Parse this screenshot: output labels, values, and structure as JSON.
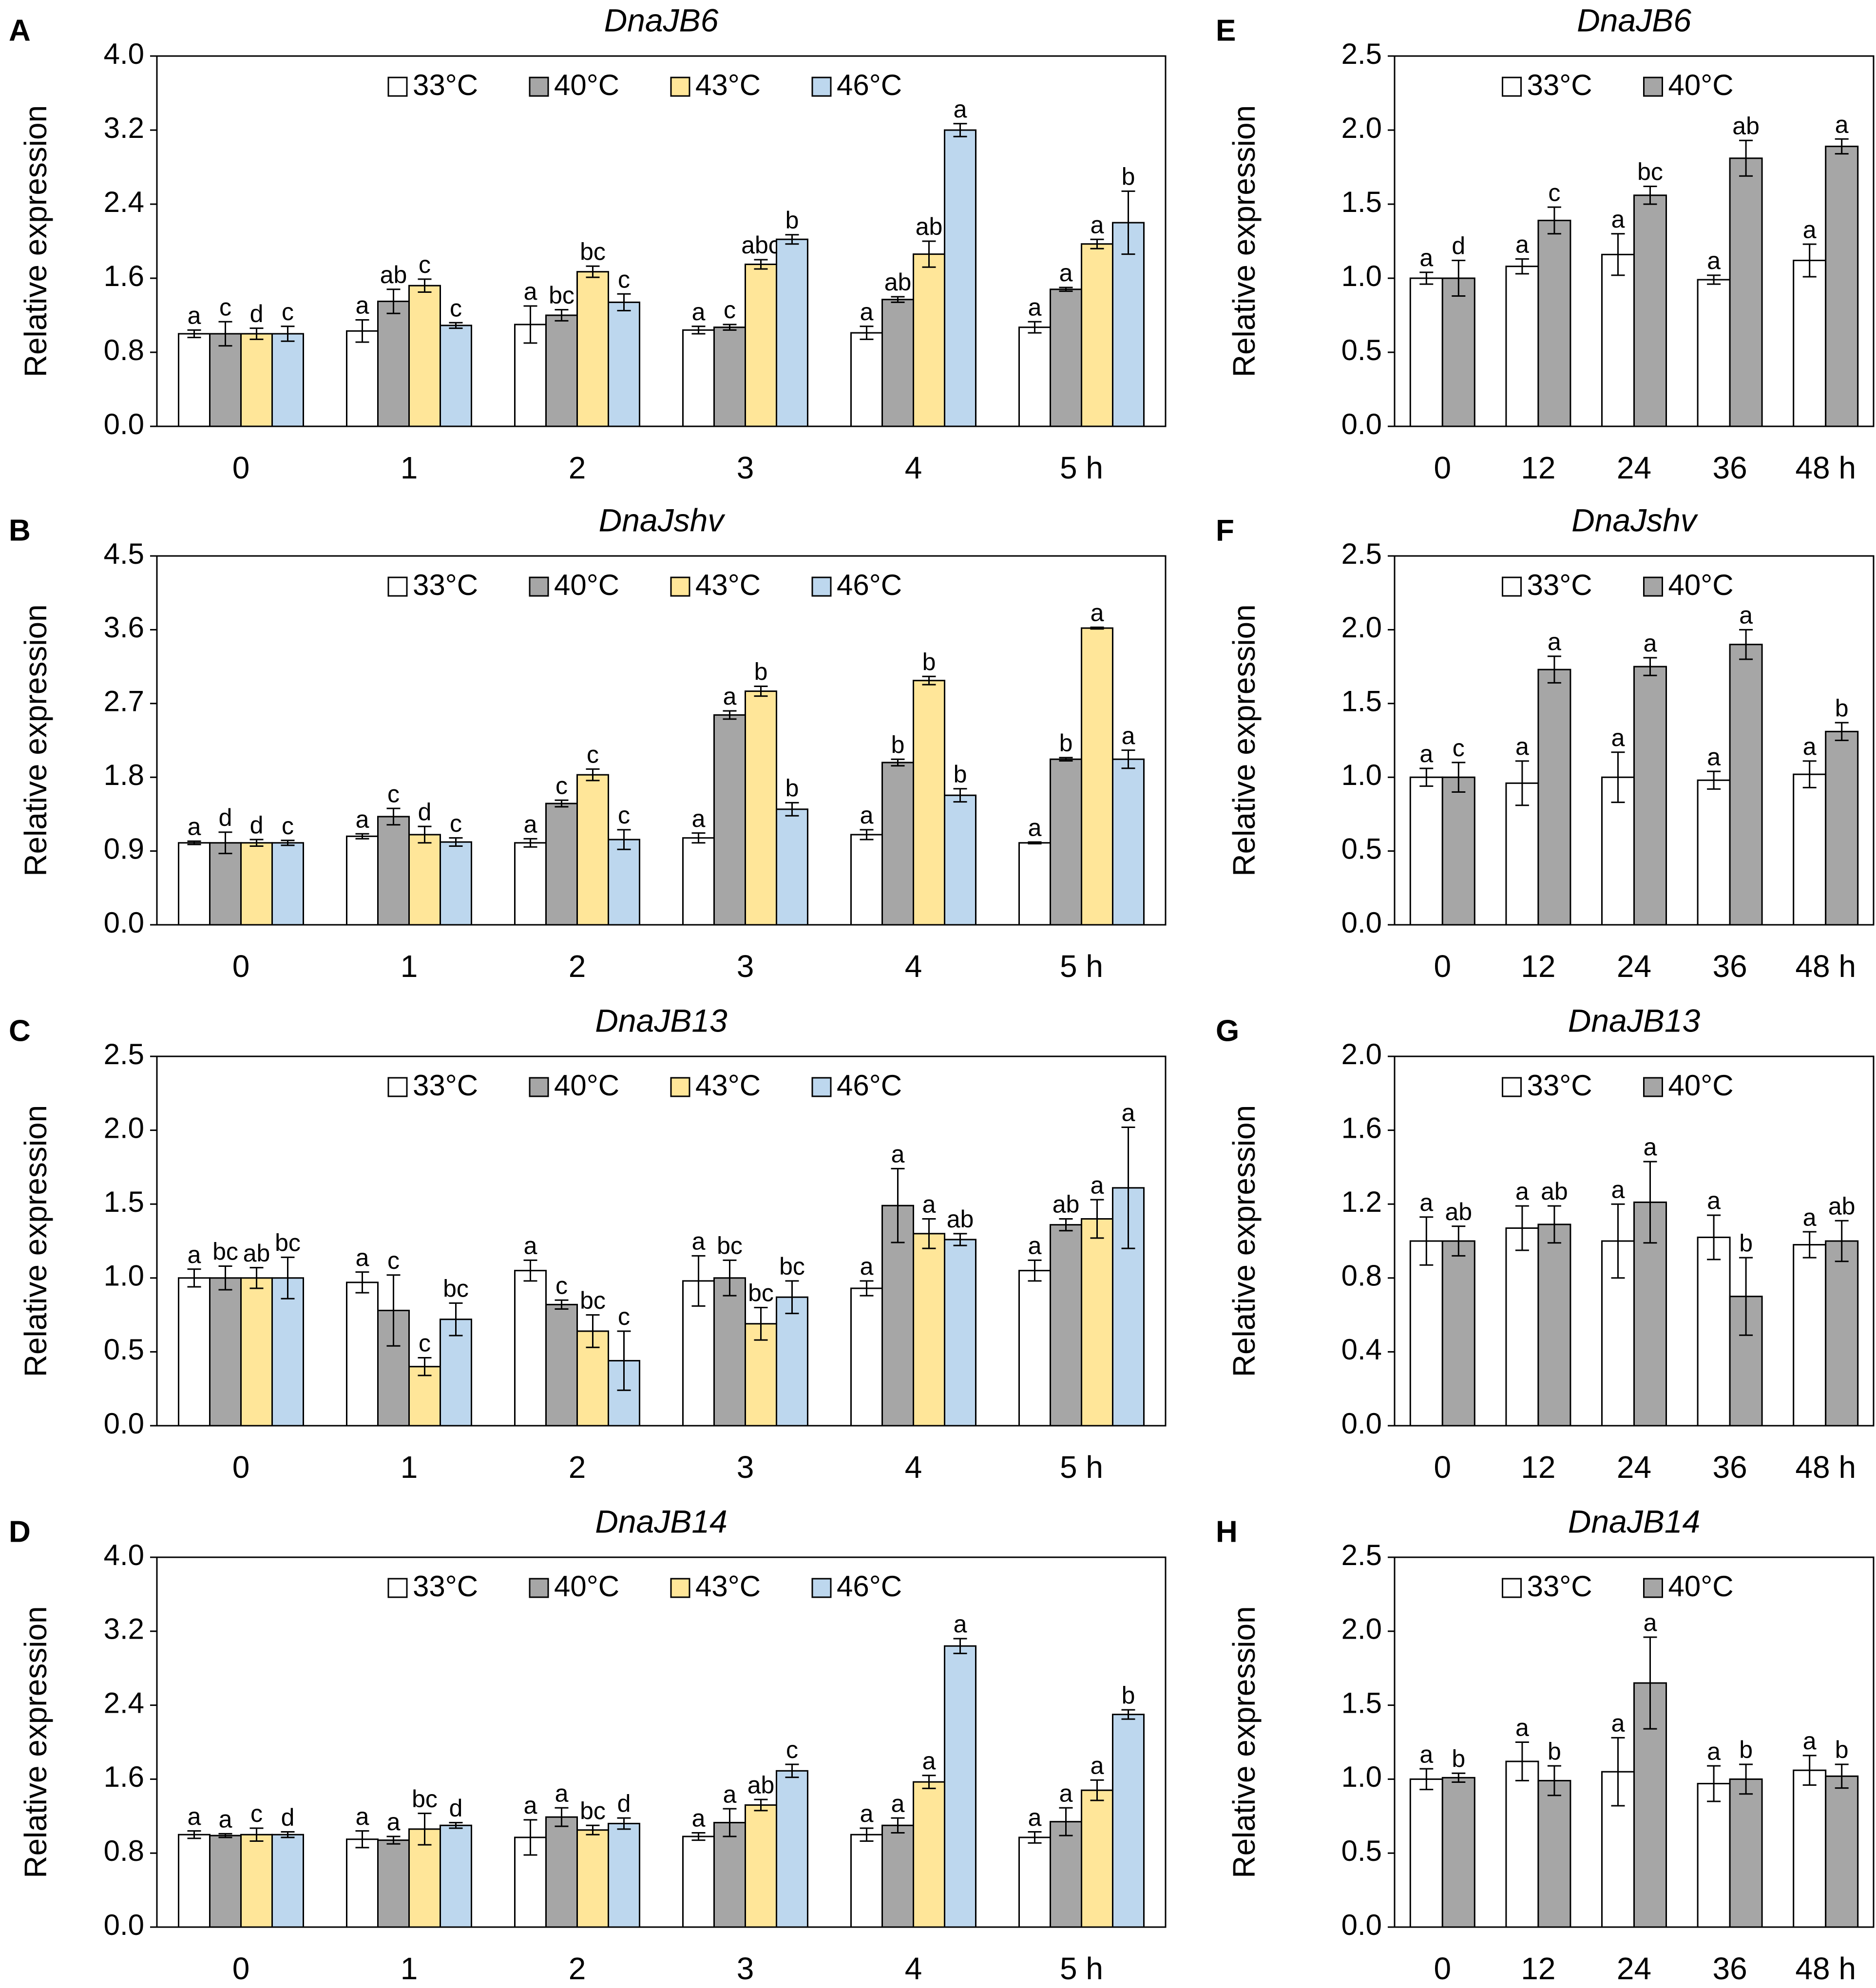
{
  "colors": {
    "33°C": "#ffffff",
    "40°C": "#a6a6a6",
    "43°C": "#ffe699",
    "46°C": "#bdd7ee",
    "stroke": "#000000"
  },
  "ylabel": "Relative expression",
  "chart_data": [
    {
      "panel": "A",
      "title": "DnaJB6",
      "type": "bar",
      "ylabel": "Relative expression",
      "ylim": [
        0,
        4.0
      ],
      "yticks": [
        "0.0",
        "0.8",
        "1.6",
        "2.4",
        "3.2",
        "4.0"
      ],
      "categories": [
        "0",
        "1",
        "2",
        "3",
        "4",
        "5 h"
      ],
      "series": [
        {
          "name": "33°C",
          "values": [
            1.0,
            1.03,
            1.1,
            1.04,
            1.01,
            1.07
          ],
          "errors": [
            0.04,
            0.12,
            0.2,
            0.04,
            0.07,
            0.06
          ],
          "letters": [
            "a",
            "a",
            "a",
            "a",
            "a",
            "a"
          ]
        },
        {
          "name": "40°C",
          "values": [
            1.0,
            1.35,
            1.2,
            1.07,
            1.37,
            1.48
          ],
          "errors": [
            0.13,
            0.13,
            0.06,
            0.03,
            0.03,
            0.02
          ],
          "letters": [
            "c",
            "ab",
            "bc",
            "c",
            "ab",
            "a"
          ]
        },
        {
          "name": "43°C",
          "values": [
            1.0,
            1.52,
            1.67,
            1.75,
            1.86,
            1.97
          ],
          "errors": [
            0.06,
            0.07,
            0.06,
            0.05,
            0.14,
            0.05
          ],
          "letters": [
            "d",
            "c",
            "bc",
            "abc",
            "ab",
            "a"
          ]
        },
        {
          "name": "46°C",
          "values": [
            1.0,
            1.09,
            1.34,
            2.02,
            3.2,
            2.2
          ],
          "errors": [
            0.08,
            0.03,
            0.09,
            0.05,
            0.07,
            0.34
          ],
          "letters": [
            "c",
            "c",
            "c",
            "b",
            "a",
            "b"
          ]
        }
      ]
    },
    {
      "panel": "B",
      "title": "DnaJshv",
      "type": "bar",
      "ylabel": "Relative expression",
      "ylim": [
        0,
        4.5
      ],
      "yticks": [
        "0.0",
        "0.9",
        "1.8",
        "2.7",
        "3.6",
        "4.5"
      ],
      "categories": [
        "0",
        "1",
        "2",
        "3",
        "4",
        "5 h"
      ],
      "series": [
        {
          "name": "33°C",
          "values": [
            1.0,
            1.08,
            1.0,
            1.06,
            1.1,
            1.0
          ],
          "errors": [
            0.02,
            0.03,
            0.05,
            0.06,
            0.06,
            0.01
          ],
          "letters": [
            "a",
            "a",
            "a",
            "a",
            "a",
            "a"
          ]
        },
        {
          "name": "40°C",
          "values": [
            1.0,
            1.32,
            1.48,
            2.56,
            1.98,
            2.02
          ],
          "errors": [
            0.13,
            0.1,
            0.04,
            0.05,
            0.04,
            0.02
          ],
          "letters": [
            "d",
            "c",
            "c",
            "a",
            "b",
            "b"
          ]
        },
        {
          "name": "43°C",
          "values": [
            1.0,
            1.1,
            1.83,
            2.85,
            2.98,
            3.62
          ],
          "errors": [
            0.04,
            0.1,
            0.07,
            0.06,
            0.05,
            0.01
          ],
          "letters": [
            "d",
            "d",
            "c",
            "b",
            "b",
            "a"
          ]
        },
        {
          "name": "46°C",
          "values": [
            1.0,
            1.01,
            1.04,
            1.41,
            1.58,
            2.02
          ],
          "errors": [
            0.03,
            0.05,
            0.12,
            0.08,
            0.08,
            0.11
          ],
          "letters": [
            "c",
            "c",
            "c",
            "b",
            "b",
            "a"
          ]
        }
      ]
    },
    {
      "panel": "C",
      "title": "DnaJB13",
      "type": "bar",
      "ylabel": "Relative expression",
      "ylim": [
        0,
        2.5
      ],
      "yticks": [
        "0.0",
        "0.5",
        "1.0",
        "1.5",
        "2.0",
        "2.5"
      ],
      "categories": [
        "0",
        "1",
        "2",
        "3",
        "4",
        "5 h"
      ],
      "series": [
        {
          "name": "33°C",
          "values": [
            1.0,
            0.97,
            1.05,
            0.98,
            0.93,
            1.05
          ],
          "errors": [
            0.06,
            0.07,
            0.07,
            0.17,
            0.05,
            0.07
          ],
          "letters": [
            "a",
            "a",
            "a",
            "a",
            "a",
            "a"
          ]
        },
        {
          "name": "40°C",
          "values": [
            1.0,
            0.78,
            0.82,
            1.0,
            1.49,
            1.36
          ],
          "errors": [
            0.08,
            0.24,
            0.03,
            0.12,
            0.25,
            0.04
          ],
          "letters": [
            "bc",
            "c",
            "c",
            "bc",
            "a",
            "ab"
          ]
        },
        {
          "name": "43°C",
          "values": [
            1.0,
            0.4,
            0.64,
            0.69,
            1.3,
            1.4
          ],
          "errors": [
            0.07,
            0.06,
            0.11,
            0.11,
            0.1,
            0.13
          ],
          "letters": [
            "ab",
            "c",
            "bc",
            "bc",
            "a",
            "a"
          ]
        },
        {
          "name": "46°C",
          "values": [
            1.0,
            0.72,
            0.44,
            0.87,
            1.26,
            1.61
          ],
          "errors": [
            0.14,
            0.11,
            0.2,
            0.11,
            0.04,
            0.41
          ],
          "letters": [
            "bc",
            "bc",
            "c",
            "bc",
            "ab",
            "a"
          ]
        }
      ]
    },
    {
      "panel": "D",
      "title": "DnaJB14",
      "type": "bar",
      "ylabel": "Relative expression",
      "ylim": [
        0,
        4.0
      ],
      "yticks": [
        "0.0",
        "0.8",
        "1.6",
        "2.4",
        "3.2",
        "4.0"
      ],
      "categories": [
        "0",
        "1",
        "2",
        "3",
        "4",
        "5 h"
      ],
      "series": [
        {
          "name": "33°C",
          "values": [
            1.0,
            0.95,
            0.97,
            0.98,
            1.0,
            0.97
          ],
          "errors": [
            0.04,
            0.09,
            0.19,
            0.04,
            0.07,
            0.06
          ],
          "letters": [
            "a",
            "a",
            "a",
            "a",
            "a",
            "a"
          ]
        },
        {
          "name": "40°C",
          "values": [
            0.99,
            0.94,
            1.19,
            1.13,
            1.1,
            1.14
          ],
          "errors": [
            0.02,
            0.04,
            0.1,
            0.15,
            0.08,
            0.15
          ],
          "letters": [
            "a",
            "a",
            "a",
            "a",
            "a",
            "a"
          ]
        },
        {
          "name": "43°C",
          "values": [
            1.0,
            1.06,
            1.05,
            1.32,
            1.57,
            1.48
          ],
          "errors": [
            0.07,
            0.17,
            0.05,
            0.06,
            0.07,
            0.11
          ],
          "letters": [
            "c",
            "bc",
            "bc",
            "ab",
            "a",
            "a"
          ]
        },
        {
          "name": "46°C",
          "values": [
            1.0,
            1.1,
            1.12,
            1.69,
            3.04,
            2.3
          ],
          "errors": [
            0.03,
            0.03,
            0.06,
            0.07,
            0.08,
            0.05
          ],
          "letters": [
            "d",
            "d",
            "d",
            "c",
            "a",
            "b"
          ]
        }
      ]
    },
    {
      "panel": "E",
      "title": "DnaJB6",
      "type": "bar",
      "ylabel": "Relative expression",
      "ylim": [
        0,
        2.5
      ],
      "yticks": [
        "0.0",
        "0.5",
        "1.0",
        "1.5",
        "2.0",
        "2.5"
      ],
      "categories": [
        "0",
        "12",
        "24",
        "36",
        "48 h"
      ],
      "series": [
        {
          "name": "33°C",
          "values": [
            1.0,
            1.08,
            1.16,
            0.99,
            1.12
          ],
          "errors": [
            0.04,
            0.05,
            0.14,
            0.03,
            0.11
          ],
          "letters": [
            "a",
            "a",
            "a",
            "a",
            "a"
          ]
        },
        {
          "name": "40°C",
          "values": [
            1.0,
            1.39,
            1.56,
            1.81,
            1.89
          ],
          "errors": [
            0.12,
            0.09,
            0.06,
            0.12,
            0.05
          ],
          "letters": [
            "d",
            "c",
            "bc",
            "ab",
            "a"
          ]
        }
      ]
    },
    {
      "panel": "F",
      "title": "DnaJshv",
      "type": "bar",
      "ylabel": "Relative expression",
      "ylim": [
        0,
        2.5
      ],
      "yticks": [
        "0.0",
        "0.5",
        "1.0",
        "1.5",
        "2.0",
        "2.5"
      ],
      "categories": [
        "0",
        "12",
        "24",
        "36",
        "48 h"
      ],
      "series": [
        {
          "name": "33°C",
          "values": [
            1.0,
            0.96,
            1.0,
            0.98,
            1.02
          ],
          "errors": [
            0.06,
            0.15,
            0.17,
            0.06,
            0.09
          ],
          "letters": [
            "a",
            "a",
            "a",
            "a",
            "a"
          ]
        },
        {
          "name": "40°C",
          "values": [
            1.0,
            1.73,
            1.75,
            1.9,
            1.31
          ],
          "errors": [
            0.1,
            0.09,
            0.06,
            0.1,
            0.06
          ],
          "letters": [
            "c",
            "a",
            "a",
            "a",
            "b"
          ]
        }
      ]
    },
    {
      "panel": "G",
      "title": "DnaJB13",
      "type": "bar",
      "ylabel": "Relative expression",
      "ylim": [
        0,
        2.0
      ],
      "yticks": [
        "0.0",
        "0.4",
        "0.8",
        "1.2",
        "1.6",
        "2.0"
      ],
      "categories": [
        "0",
        "12",
        "24",
        "36",
        "48 h"
      ],
      "series": [
        {
          "name": "33°C",
          "values": [
            1.0,
            1.07,
            1.0,
            1.02,
            0.98
          ],
          "errors": [
            0.13,
            0.12,
            0.2,
            0.12,
            0.07
          ],
          "letters": [
            "a",
            "a",
            "a",
            "a",
            "a"
          ]
        },
        {
          "name": "40°C",
          "values": [
            1.0,
            1.09,
            1.21,
            0.7,
            1.0
          ],
          "errors": [
            0.08,
            0.1,
            0.22,
            0.21,
            0.11
          ],
          "letters": [
            "ab",
            "ab",
            "a",
            "b",
            "ab"
          ]
        }
      ]
    },
    {
      "panel": "H",
      "title": "DnaJB14",
      "type": "bar",
      "ylabel": "Relative expression",
      "ylim": [
        0,
        2.5
      ],
      "yticks": [
        "0.0",
        "0.5",
        "1.0",
        "1.5",
        "2.0",
        "2.5"
      ],
      "categories": [
        "0",
        "12",
        "24",
        "36",
        "48 h"
      ],
      "series": [
        {
          "name": "33°C",
          "values": [
            1.0,
            1.12,
            1.05,
            0.97,
            1.06
          ],
          "errors": [
            0.07,
            0.13,
            0.23,
            0.12,
            0.1
          ],
          "letters": [
            "a",
            "a",
            "a",
            "a",
            "a"
          ]
        },
        {
          "name": "40°C",
          "values": [
            1.01,
            0.99,
            1.65,
            1.0,
            1.02
          ],
          "errors": [
            0.03,
            0.1,
            0.31,
            0.1,
            0.08
          ],
          "letters": [
            "b",
            "b",
            "a",
            "b",
            "b"
          ]
        }
      ]
    }
  ]
}
